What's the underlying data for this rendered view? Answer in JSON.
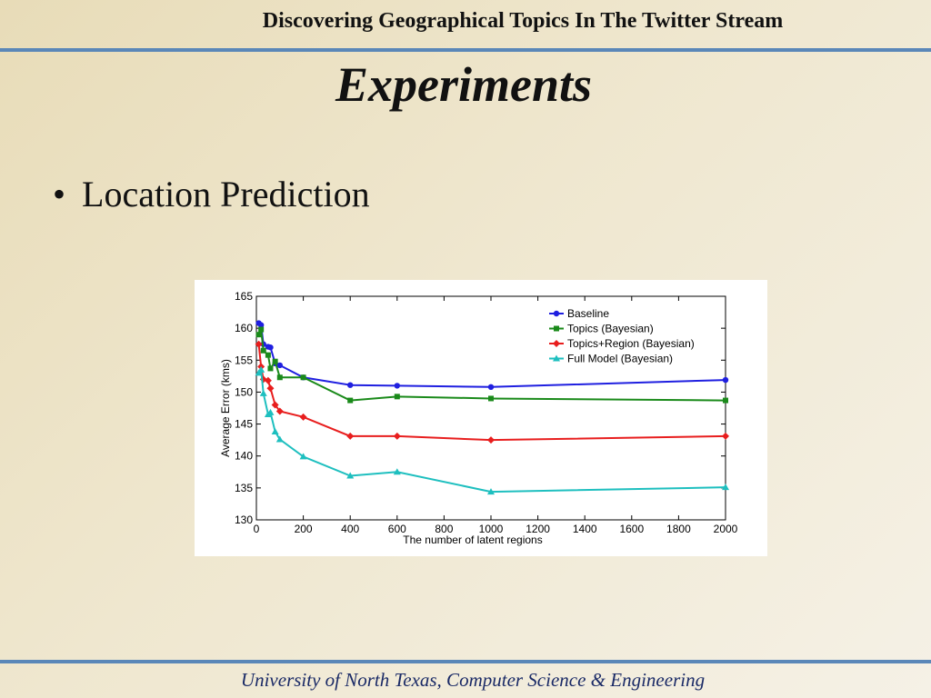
{
  "header": {
    "title": "Discovering Geographical Topics In The Twitter Stream"
  },
  "slide": {
    "title": "Experiments",
    "bullet": "Location Prediction"
  },
  "footer": {
    "text": "University of North Texas, Computer Science & Engineering"
  },
  "chart_data": {
    "type": "line",
    "xlabel": "The number of latent regions",
    "ylabel": "Average Error (kms)",
    "xlim": [
      0,
      2000
    ],
    "ylim": [
      130,
      165
    ],
    "xticks": [
      0,
      200,
      400,
      600,
      800,
      1000,
      1200,
      1400,
      1600,
      1800,
      2000
    ],
    "yticks": [
      130,
      135,
      140,
      145,
      150,
      155,
      160,
      165
    ],
    "grid": false,
    "legend_position": "top-right",
    "x": [
      10,
      20,
      30,
      50,
      60,
      80,
      100,
      200,
      400,
      600,
      1000,
      2000
    ],
    "series": [
      {
        "name": "Baseline",
        "color": "#1f1fe0",
        "marker": "circle",
        "values": [
          160.8,
          160.5,
          157.5,
          157.1,
          157.0,
          154.5,
          154.2,
          152.3,
          151.1,
          151.0,
          150.8,
          151.9
        ]
      },
      {
        "name": "Topics (Bayesian)",
        "color": "#1a8a1a",
        "marker": "square",
        "values": [
          159.0,
          159.8,
          156.5,
          155.8,
          153.7,
          154.8,
          152.3,
          152.3,
          148.7,
          149.3,
          149.0,
          148.7
        ]
      },
      {
        "name": "Topics+Region (Bayesian)",
        "color": "#e81e1e",
        "marker": "diamond",
        "values": [
          157.5,
          154.0,
          152.0,
          151.8,
          150.6,
          148.0,
          147.0,
          146.1,
          143.1,
          143.1,
          142.5,
          143.1
        ]
      },
      {
        "name": "Full Model (Bayesian)",
        "color": "#1ebfbf",
        "marker": "triangle",
        "values": [
          153.0,
          153.5,
          149.8,
          146.5,
          146.8,
          143.8,
          142.6,
          139.9,
          136.9,
          137.5,
          134.4,
          135.1
        ]
      }
    ]
  }
}
